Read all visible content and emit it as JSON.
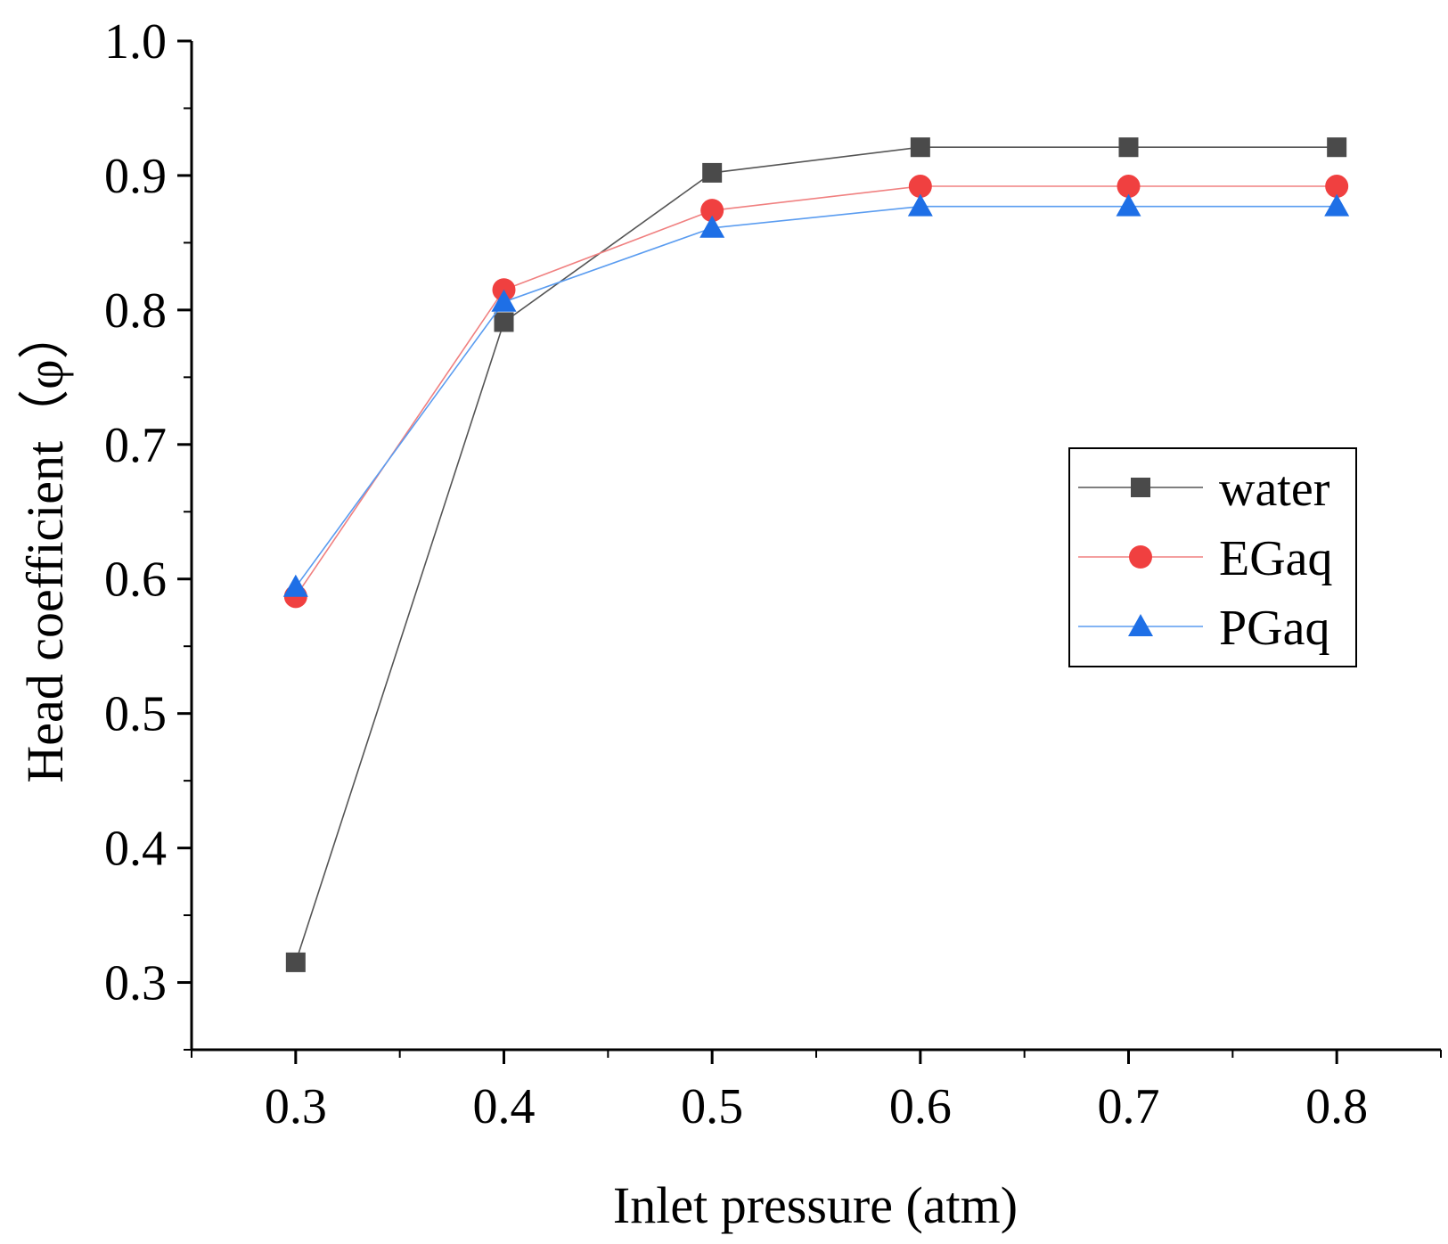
{
  "chart_data": {
    "type": "line",
    "title": "",
    "xlabel": "Inlet pressure (atm)",
    "ylabel": "Head coefficient（φ）",
    "x": [
      0.3,
      0.4,
      0.5,
      0.6,
      0.7,
      0.8
    ],
    "xlim": [
      0.25,
      0.85
    ],
    "ylim": [
      0.25,
      1.0
    ],
    "xticks": [
      "0.3",
      "0.4",
      "0.5",
      "0.6",
      "0.7",
      "0.8"
    ],
    "yticks": [
      "0.3",
      "0.4",
      "0.5",
      "0.6",
      "0.7",
      "0.8",
      "0.9",
      "1.0"
    ],
    "grid": false,
    "legend_position": "right",
    "series": [
      {
        "name": "water",
        "marker": "square",
        "color": "#4a4a4a",
        "line_color": "#555555",
        "values": [
          0.315,
          0.791,
          0.902,
          0.921,
          0.921,
          0.921
        ]
      },
      {
        "name": "EGaq",
        "marker": "circle",
        "color": "#f04040",
        "line_color": "#f08080",
        "values": [
          0.587,
          0.815,
          0.874,
          0.892,
          0.892,
          0.892
        ]
      },
      {
        "name": "PGaq",
        "marker": "triangle",
        "color": "#1e6fe6",
        "line_color": "#5a9cf0",
        "values": [
          0.594,
          0.806,
          0.861,
          0.877,
          0.877,
          0.877
        ]
      }
    ]
  }
}
